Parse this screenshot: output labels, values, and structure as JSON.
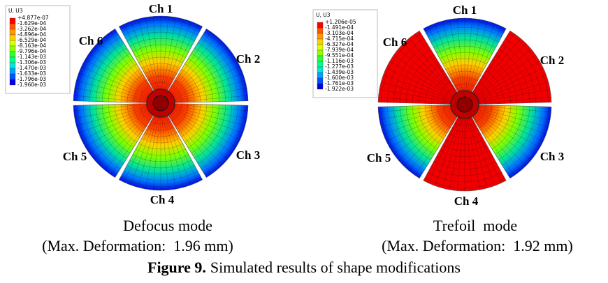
{
  "panels": [
    {
      "legend": {
        "title": "U, U3",
        "labels": [
          "+4.877e-07",
          "-1.629e-04",
          "-3.262e-04",
          "-4.896e-04",
          "-6.529e-04",
          "-8.163e-04",
          "-9.796e-04",
          "-1.143e-03",
          "-1.306e-03",
          "-1.470e-03",
          "-1.633e-03",
          "-1.796e-03",
          "-1.960e-03"
        ]
      },
      "channels": [
        "Ch 1",
        "Ch 2",
        "Ch 3",
        "Ch 4",
        "Ch 5",
        "Ch 6"
      ],
      "mode": "Defocus mode",
      "max_deformation": "(Max. Deformation:  1.96 mm)"
    },
    {
      "legend": {
        "title": "U, U3",
        "labels": [
          "+1.206e-05",
          "-1.491e-04",
          "-3.103e-04",
          "-4.715e-04",
          "-6.327e-04",
          "-7.939e-04",
          "-9.551e-04",
          "-1.116e-03",
          "-1.277e-03",
          "-1.439e-03",
          "-1.600e-03",
          "-1.761e-03",
          "-1.922e-03"
        ]
      },
      "channels": [
        "Ch 1",
        "Ch 2",
        "Ch 3",
        "Ch 4",
        "Ch 5",
        "Ch 6"
      ],
      "mode": "Trefoil  mode",
      "max_deformation": "(Max. Deformation:  1.92 mm)"
    }
  ],
  "caption": {
    "label": "Figure 9.",
    "text": "Simulated results of shape modifications"
  }
}
